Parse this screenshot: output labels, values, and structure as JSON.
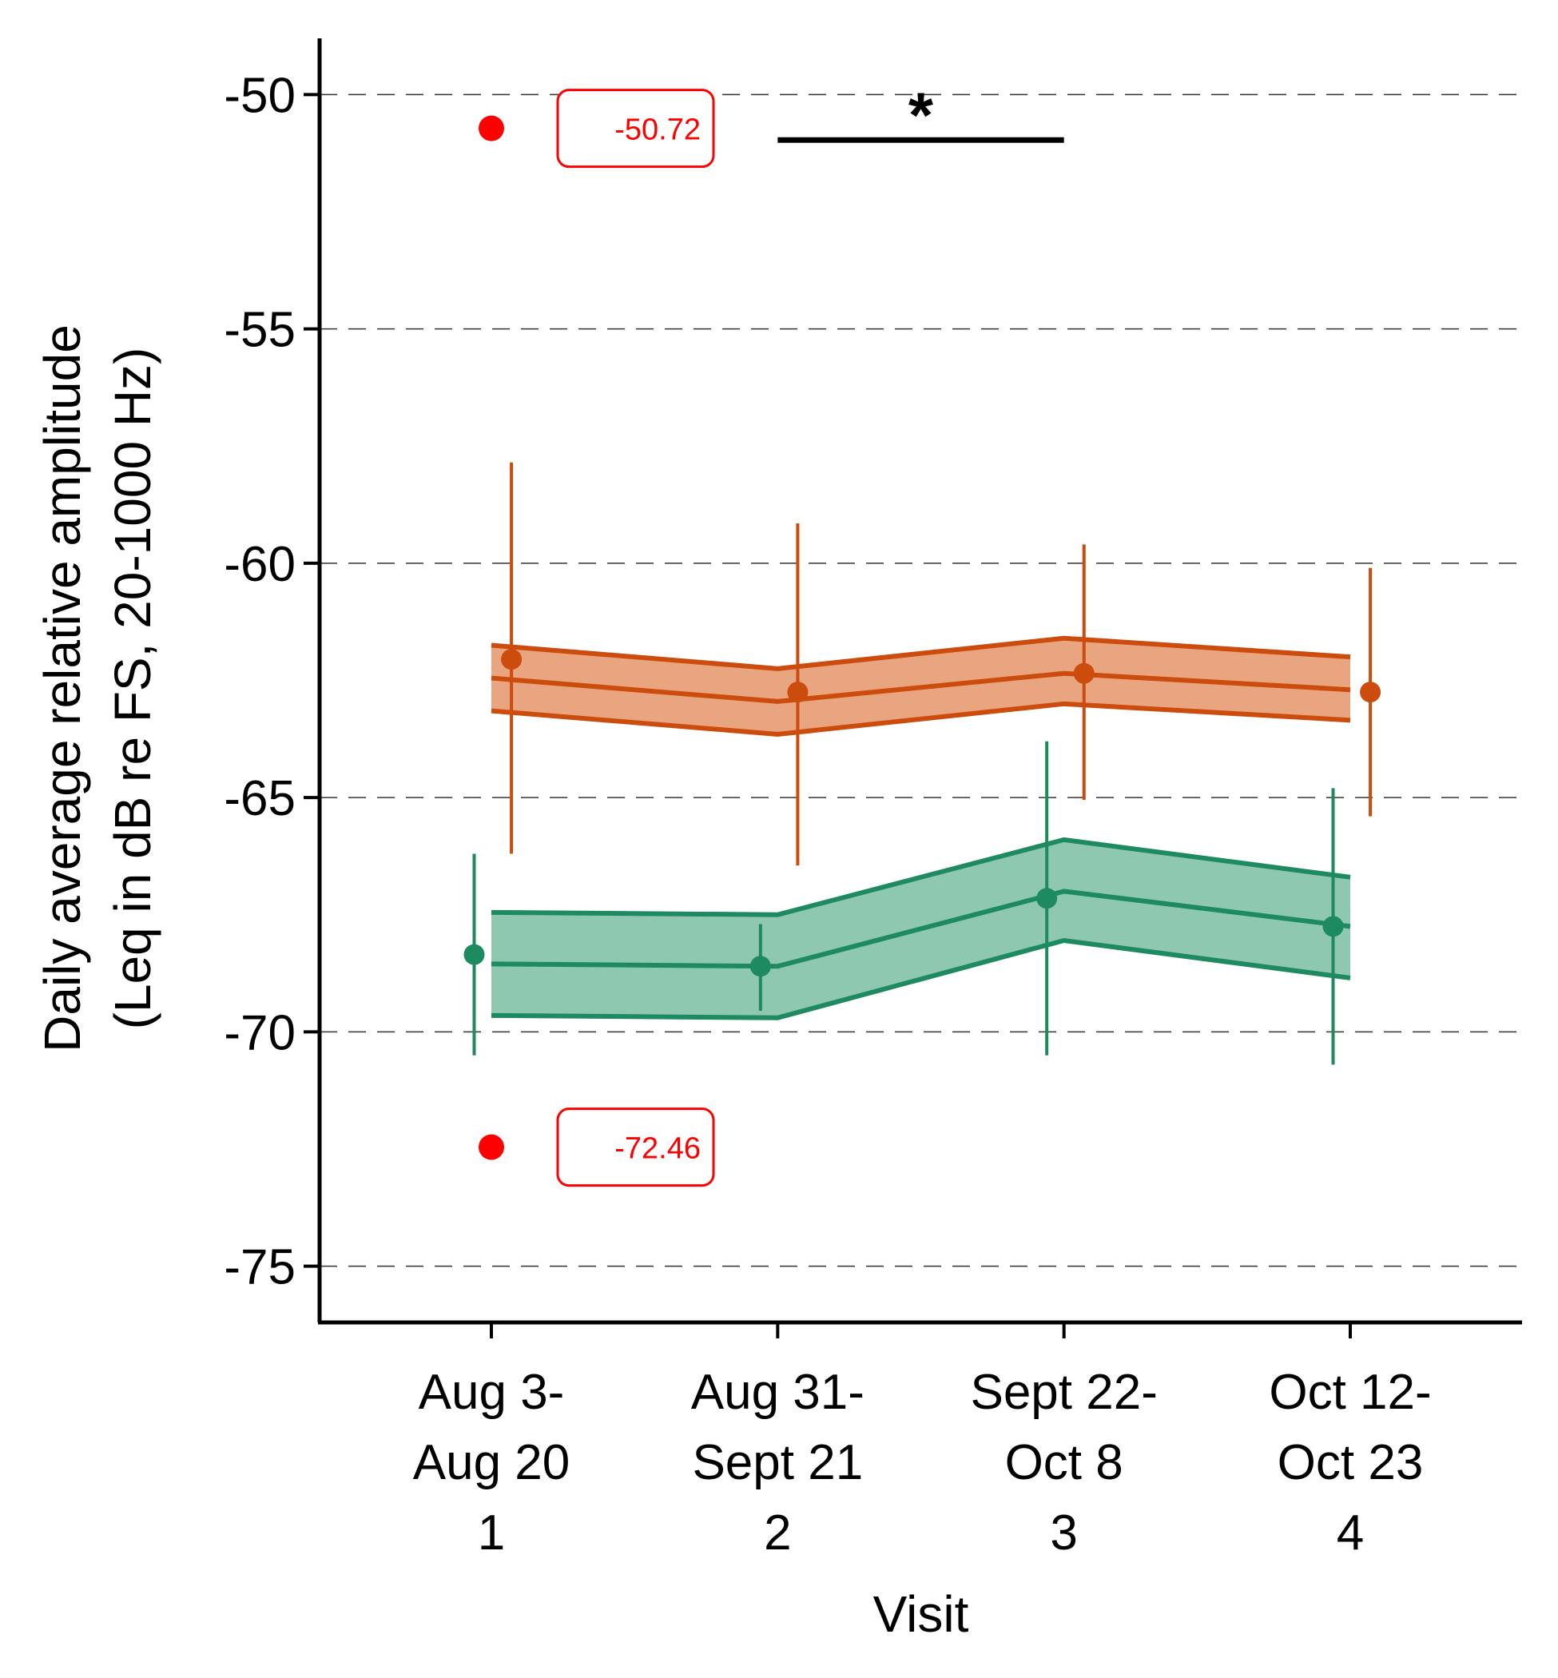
{
  "chart_data": {
    "type": "line",
    "xlabel": "Visit",
    "ylabel_lines": [
      "Daily average relative amplitude",
      "(Leq in dB re FS, 20-1000 Hz)"
    ],
    "categories": [
      {
        "lines": [
          "Aug 3-",
          "Aug 20",
          "1"
        ]
      },
      {
        "lines": [
          "Aug 31-",
          "Sept 21",
          "2"
        ]
      },
      {
        "lines": [
          "Sept 22-",
          "Oct 8",
          "3"
        ]
      },
      {
        "lines": [
          "Oct 12-",
          "Oct 23",
          "4"
        ]
      }
    ],
    "x": [
      1,
      2,
      3,
      4
    ],
    "xlim": [
      0.4,
      4.6
    ],
    "ylim": [
      -76.2,
      -48.8
    ],
    "yticks": [
      -50,
      -55,
      -60,
      -65,
      -70,
      -75
    ],
    "grid": "horizontal-dashed",
    "series": [
      {
        "color": "#cc4c0e",
        "fill": "#e8a580",
        "model_fit": [
          -62.45,
          -62.95,
          -62.35,
          -62.7
        ],
        "ci_upper": [
          -61.75,
          -62.25,
          -61.6,
          -62.0
        ],
        "ci_lower": [
          -63.15,
          -63.65,
          -63.0,
          -63.35
        ],
        "points": [
          {
            "x": 1.07,
            "mean": -62.05,
            "lower": -66.2,
            "upper": -57.85
          },
          {
            "x": 2.07,
            "mean": -62.75,
            "lower": -66.45,
            "upper": -59.15
          },
          {
            "x": 3.07,
            "mean": -62.35,
            "lower": -65.05,
            "upper": -59.6
          },
          {
            "x": 4.07,
            "mean": -62.75,
            "lower": -65.4,
            "upper": -60.1
          }
        ]
      },
      {
        "color": "#1e8a60",
        "fill": "#8fc8b0",
        "model_fit": [
          -68.55,
          -68.6,
          -67.0,
          -67.75
        ],
        "ci_upper": [
          -67.45,
          -67.5,
          -65.9,
          -66.7
        ],
        "ci_lower": [
          -69.65,
          -69.7,
          -68.05,
          -68.85
        ],
        "points": [
          {
            "x": 0.94,
            "mean": -68.35,
            "lower": -70.5,
            "upper": -66.2
          },
          {
            "x": 1.94,
            "mean": -68.6,
            "lower": -69.55,
            "upper": -67.7
          },
          {
            "x": 2.94,
            "mean": -67.15,
            "lower": -70.5,
            "upper": -63.8
          },
          {
            "x": 3.94,
            "mean": -67.75,
            "lower": -70.7,
            "upper": -64.8
          }
        ]
      }
    ],
    "annotations": [
      {
        "x": 1.0,
        "y": -50.72,
        "label": "-50.72",
        "color": "#ff0000"
      },
      {
        "x": 1.0,
        "y": -72.46,
        "label": "-72.46",
        "color": "#ff0000"
      }
    ],
    "significance": {
      "x_from": 2,
      "x_to": 3,
      "y": -50.97,
      "label": "*"
    }
  }
}
